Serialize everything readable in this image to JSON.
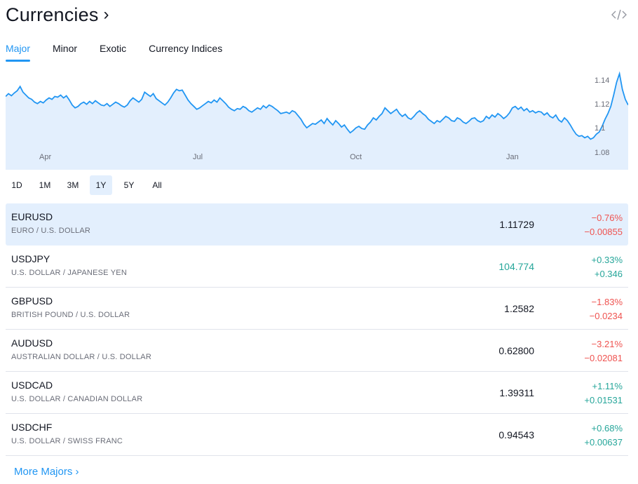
{
  "header": {
    "title": "Currencies",
    "chevron": "›",
    "embed_icon": "code-embed-icon"
  },
  "tabs": [
    {
      "label": "Major",
      "active": true
    },
    {
      "label": "Minor",
      "active": false
    },
    {
      "label": "Exotic",
      "active": false
    },
    {
      "label": "Currency Indices",
      "active": false
    }
  ],
  "chart_data": {
    "type": "area",
    "series_of": "EURUSD",
    "color": "#2196f3",
    "fill": "#e3effd",
    "x_tick_labels": [
      "Apr",
      "Jul",
      "Oct",
      "Jan"
    ],
    "y_tick_labels": [
      "1.14",
      "1.12",
      "1.1",
      "1.08"
    ],
    "ylim": [
      1.0725,
      1.1425
    ],
    "values": [
      1.124,
      1.126,
      1.1245,
      1.1265,
      1.128,
      1.131,
      1.127,
      1.125,
      1.123,
      1.122,
      1.12,
      1.119,
      1.1205,
      1.1195,
      1.1215,
      1.123,
      1.122,
      1.124,
      1.1235,
      1.125,
      1.123,
      1.1245,
      1.1215,
      1.118,
      1.116,
      1.117,
      1.119,
      1.12,
      1.1185,
      1.1205,
      1.119,
      1.121,
      1.1195,
      1.118,
      1.1175,
      1.119,
      1.117,
      1.1185,
      1.12,
      1.119,
      1.1175,
      1.1165,
      1.118,
      1.121,
      1.123,
      1.1215,
      1.12,
      1.122,
      1.127,
      1.1255,
      1.124,
      1.126,
      1.1225,
      1.121,
      1.1195,
      1.118,
      1.12,
      1.123,
      1.1265,
      1.129,
      1.128,
      1.1285,
      1.125,
      1.1215,
      1.119,
      1.117,
      1.115,
      1.116,
      1.1175,
      1.119,
      1.1205,
      1.1195,
      1.1215,
      1.12,
      1.123,
      1.121,
      1.119,
      1.1165,
      1.115,
      1.114,
      1.1155,
      1.115,
      1.117,
      1.116,
      1.114,
      1.113,
      1.1145,
      1.116,
      1.115,
      1.1175,
      1.116,
      1.118,
      1.117,
      1.1155,
      1.114,
      1.112,
      1.1125,
      1.113,
      1.112,
      1.114,
      1.113,
      1.1105,
      1.108,
      1.1045,
      1.102,
      1.1035,
      1.105,
      1.1045,
      1.106,
      1.1075,
      1.105,
      1.1085,
      1.106,
      1.104,
      1.107,
      1.105,
      1.1025,
      1.104,
      1.101,
      1.0985,
      1.1,
      1.102,
      1.103,
      1.1015,
      1.101,
      1.104,
      1.106,
      1.109,
      1.1075,
      1.11,
      1.112,
      1.116,
      1.114,
      1.112,
      1.1135,
      1.115,
      1.112,
      1.11,
      1.1115,
      1.109,
      1.108,
      1.11,
      1.1125,
      1.114,
      1.112,
      1.1105,
      1.108,
      1.1065,
      1.105,
      1.107,
      1.106,
      1.108,
      1.11,
      1.109,
      1.107,
      1.1065,
      1.109,
      1.108,
      1.106,
      1.105,
      1.1065,
      1.1085,
      1.109,
      1.107,
      1.106,
      1.107,
      1.11,
      1.1085,
      1.111,
      1.1095,
      1.112,
      1.1105,
      1.1085,
      1.11,
      1.1125,
      1.116,
      1.117,
      1.115,
      1.1165,
      1.114,
      1.1155,
      1.113,
      1.114,
      1.1125,
      1.1135,
      1.113,
      1.111,
      1.1125,
      1.11,
      1.109,
      1.111,
      1.1075,
      1.106,
      1.109,
      1.107,
      1.104,
      1.1005,
      1.0975,
      1.096,
      1.0965,
      1.095,
      1.096,
      1.094,
      1.095,
      1.0975,
      1.099,
      1.103,
      1.108,
      1.112,
      1.117,
      1.125,
      1.134,
      1.14,
      1.129,
      1.122,
      1.118
    ]
  },
  "ranges": [
    {
      "label": "1D",
      "active": false
    },
    {
      "label": "1M",
      "active": false
    },
    {
      "label": "3M",
      "active": false
    },
    {
      "label": "1Y",
      "active": true
    },
    {
      "label": "5Y",
      "active": false
    },
    {
      "label": "All",
      "active": false
    }
  ],
  "rows": [
    {
      "symbol": "EURUSD",
      "desc": "EURO / U.S. DOLLAR",
      "price": "1.11729",
      "price_up": false,
      "pct": "−0.76%",
      "abs": "−0.00855",
      "dir": "neg",
      "selected": true
    },
    {
      "symbol": "USDJPY",
      "desc": "U.S. DOLLAR / JAPANESE YEN",
      "price": "104.774",
      "price_up": true,
      "pct": "+0.33%",
      "abs": "+0.346",
      "dir": "pos",
      "selected": false
    },
    {
      "symbol": "GBPUSD",
      "desc": "BRITISH POUND / U.S. DOLLAR",
      "price": "1.2582",
      "price_up": false,
      "pct": "−1.83%",
      "abs": "−0.0234",
      "dir": "neg",
      "selected": false
    },
    {
      "symbol": "AUDUSD",
      "desc": "AUSTRALIAN DOLLAR / U.S. DOLLAR",
      "price": "0.62800",
      "price_up": false,
      "pct": "−3.21%",
      "abs": "−0.02081",
      "dir": "neg",
      "selected": false
    },
    {
      "symbol": "USDCAD",
      "desc": "U.S. DOLLAR / CANADIAN DOLLAR",
      "price": "1.39311",
      "price_up": false,
      "pct": "+1.11%",
      "abs": "+0.01531",
      "dir": "pos",
      "selected": false
    },
    {
      "symbol": "USDCHF",
      "desc": "U.S. DOLLAR / SWISS FRANC",
      "price": "0.94543",
      "price_up": false,
      "pct": "+0.68%",
      "abs": "+0.00637",
      "dir": "pos",
      "selected": false
    }
  ],
  "footer": {
    "more_label": "More Majors",
    "more_chevron": "›"
  }
}
